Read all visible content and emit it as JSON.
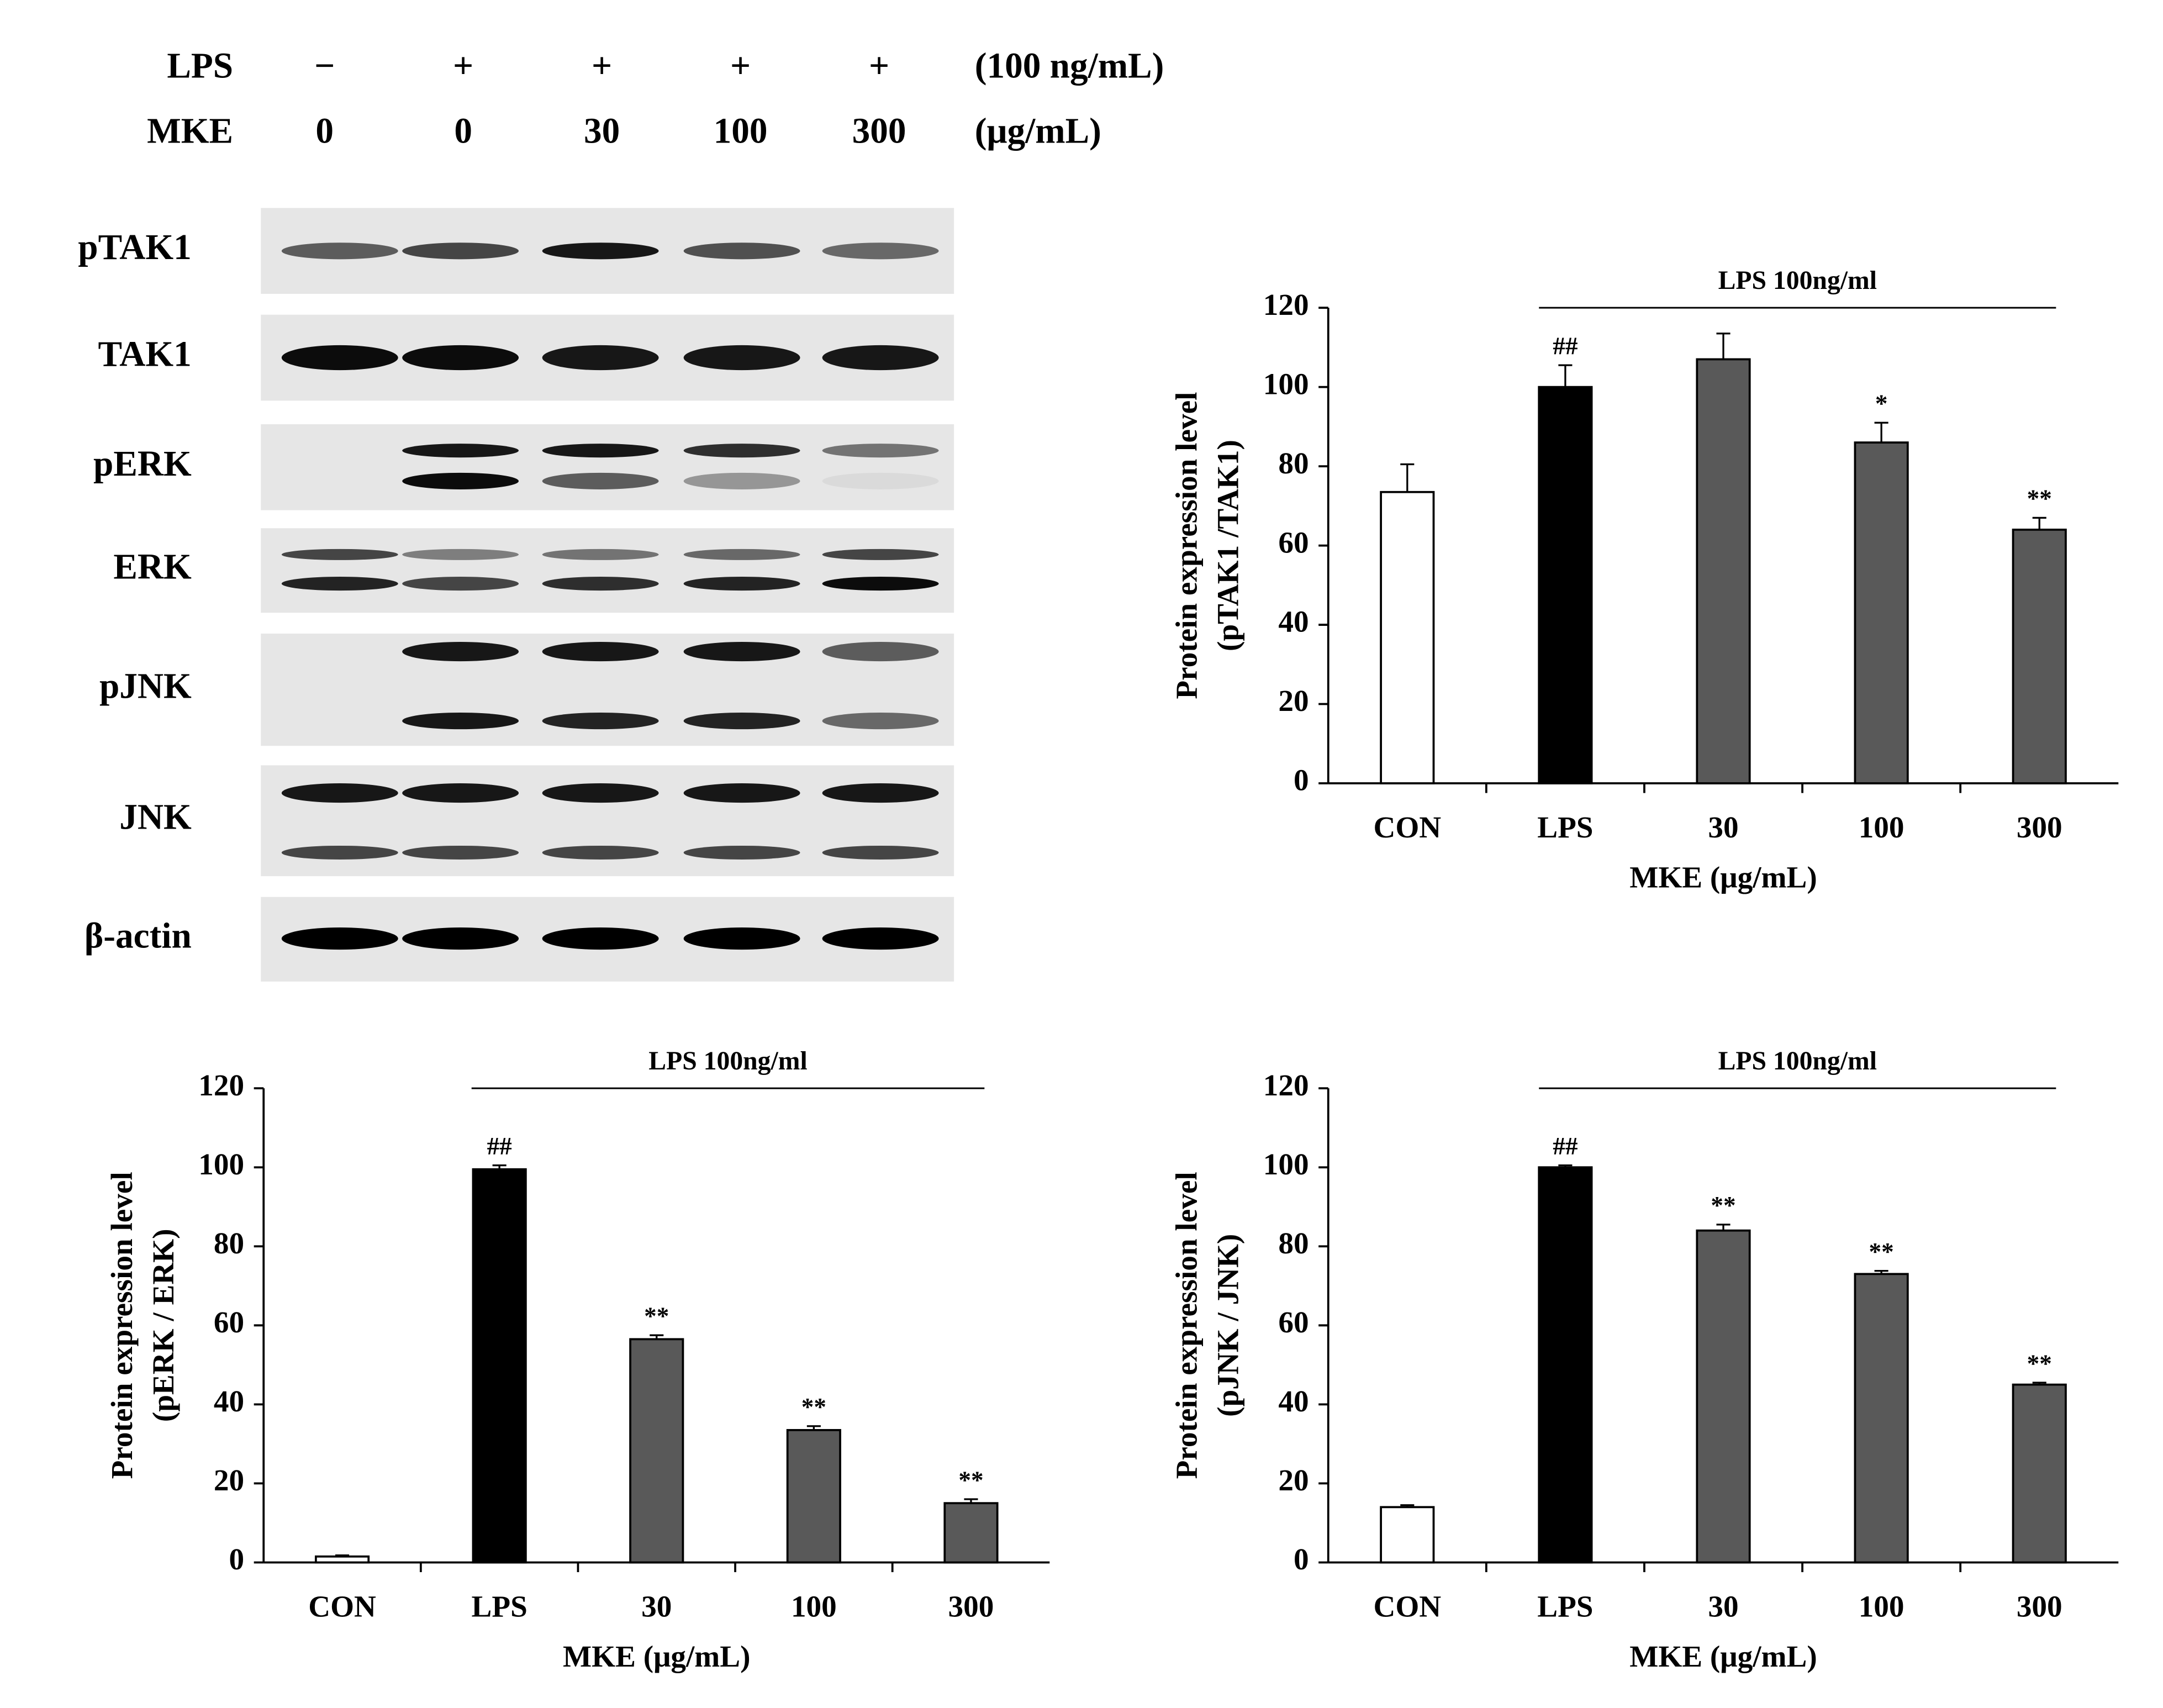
{
  "blot": {
    "treatments": [
      {
        "label": "LPS",
        "values": [
          "−",
          "+",
          "+",
          "+",
          "+"
        ],
        "unit": "(100 ng/mL)"
      },
      {
        "label": "MKE",
        "values": [
          0,
          0,
          30,
          100,
          300
        ],
        "unit": "(μg/mL)"
      }
    ],
    "proteins": [
      "pTAK1",
      "TAK1",
      "pERK",
      "ERK",
      "pJNK",
      "JNK",
      "β-actin"
    ]
  },
  "chart_data": [
    {
      "type": "bar",
      "bracket_label": "LPS 100ng/ml",
      "categories": [
        "CON",
        "LPS",
        "30",
        "100",
        "300"
      ],
      "values": [
        73.5,
        100,
        107,
        86,
        64
      ],
      "errors": [
        7,
        5.5,
        6.5,
        5,
        3
      ],
      "annotations": [
        null,
        "##",
        null,
        "*",
        "**"
      ],
      "colors": [
        "#ffffff",
        "#000000",
        "#595959",
        "#595959",
        "#595959"
      ],
      "x_label": "MKE (μg/mL)",
      "y_label": [
        "Protein expression level",
        "(pTAK1 /TAK1)"
      ],
      "ylim": [
        0,
        120
      ],
      "yticks": [
        0,
        20,
        40,
        60,
        80,
        100,
        120
      ],
      "grid": false
    },
    {
      "type": "bar",
      "bracket_label": "LPS 100ng/ml",
      "categories": [
        "CON",
        "LPS",
        "30",
        "100",
        "300"
      ],
      "values": [
        1.5,
        99.5,
        56.5,
        33.5,
        15
      ],
      "errors": [
        0.3,
        1,
        1,
        1,
        1
      ],
      "annotations": [
        null,
        "##",
        "**",
        "**",
        "**"
      ],
      "colors": [
        "#ffffff",
        "#000000",
        "#595959",
        "#595959",
        "#595959"
      ],
      "x_label": "MKE (μg/mL)",
      "y_label": [
        "Protein expression level",
        "(pERK / ERK)"
      ],
      "ylim": [
        0,
        120
      ],
      "yticks": [
        0,
        20,
        40,
        60,
        80,
        100,
        120
      ],
      "grid": false
    },
    {
      "type": "bar",
      "bracket_label": "LPS 100ng/ml",
      "categories": [
        "CON",
        "LPS",
        "30",
        "100",
        "300"
      ],
      "values": [
        14,
        100,
        84,
        73,
        45
      ],
      "errors": [
        0.5,
        0.5,
        1.5,
        0.8,
        0.5
      ],
      "annotations": [
        null,
        "##",
        "**",
        "**",
        "**"
      ],
      "colors": [
        "#ffffff",
        "#000000",
        "#595959",
        "#595959",
        "#595959"
      ],
      "x_label": "MKE (μg/mL)",
      "y_label": [
        "Protein expression level",
        "(pJNK / JNK)"
      ],
      "ylim": [
        0,
        120
      ],
      "yticks": [
        0,
        20,
        40,
        60,
        80,
        100,
        120
      ],
      "grid": false
    }
  ]
}
